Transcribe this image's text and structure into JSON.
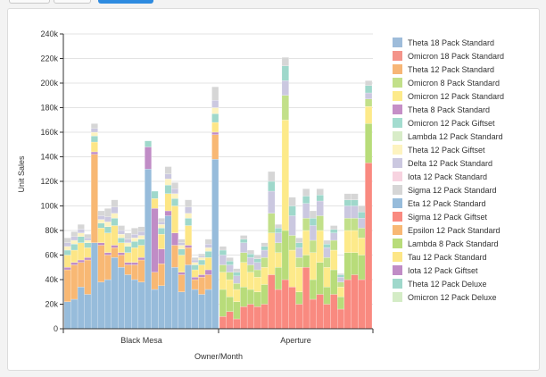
{
  "chart_data": {
    "type": "bar",
    "stacked": true,
    "title": "",
    "xlabel": "Owner/Month",
    "ylabel": "Unit Sales",
    "ylim": [
      0,
      240000
    ],
    "yticks": [
      0,
      20000,
      40000,
      60000,
      80000,
      100000,
      120000,
      140000,
      160000,
      180000,
      200000,
      220000,
      240000
    ],
    "ytick_labels": [
      "0",
      "20k",
      "40k",
      "60k",
      "80k",
      "100k",
      "120k",
      "140k",
      "160k",
      "180k",
      "200k",
      "220k",
      "240k"
    ],
    "grid": true,
    "legend_position": "right",
    "groups": [
      {
        "name": "Black Mesa",
        "totals": [
          74000,
          79000,
          85000,
          77000,
          167000,
          96000,
          98000,
          105000,
          84000,
          78000,
          82000,
          83000,
          153000,
          112000,
          90000,
          132000,
          119000,
          73000,
          105000,
          58000,
          61000,
          73000,
          197000
        ],
        "breakdown": [
          {
            "series": "Eta 12 Pack Standard",
            "values": [
              22000,
              24000,
              34000,
              28000,
              70000,
              38000,
              40000,
              58000,
              50000,
              44000,
              40000,
              38000,
              130000,
              32000,
              35000,
              92000,
              50000,
              30000,
              52000,
              32000,
              28000,
              32000,
              138000
            ]
          },
          {
            "series": "Epsilon 12 Pack Standard",
            "values": [
              26000,
              28000,
              20000,
              28000,
              72000,
              30000,
              20000,
              8000,
              10000,
              8000,
              12000,
              18000,
              0,
              14000,
              18000,
              0,
              18000,
              14000,
              14000,
              8000,
              14000,
              12000,
              20000
            ]
          },
          {
            "series": "Iota 12 Pack Giftset",
            "values": [
              2000,
              2000,
              2000,
              2000,
              2000,
              2000,
              2000,
              2000,
              2000,
              2000,
              2000,
              2000,
              18000,
              52000,
              12000,
              4000,
              10000,
              2000,
              2000,
              2000,
              2000,
              4000,
              2000
            ]
          },
          {
            "series": "Tau 12 Pack Standard",
            "values": [
              10000,
              10000,
              14000,
              8000,
              8000,
              12000,
              16000,
              16000,
              8000,
              8000,
              12000,
              10000,
              0,
              8000,
              12000,
              14000,
              22000,
              14000,
              16000,
              6000,
              8000,
              10000,
              8000
            ]
          },
          {
            "series": "Theta 12 Pack Deluxe",
            "values": [
              4000,
              5000,
              5000,
              4000,
              5000,
              4000,
              5000,
              6000,
              4000,
              5000,
              5000,
              5000,
              5000,
              6000,
              5000,
              7000,
              6000,
              5000,
              6000,
              4000,
              4000,
              5000,
              7000
            ]
          },
          {
            "series": "Theta 12 Pack Giftset",
            "values": [
              3000,
              3000,
              3000,
              2000,
              3000,
              3000,
              4000,
              4000,
              3000,
              3000,
              3000,
              3000,
              0,
              0,
              3000,
              5000,
              4000,
              3000,
              4000,
              2000,
              2000,
              3000,
              5000
            ]
          },
          {
            "series": "Delta 12 Pack Standard",
            "values": [
              3000,
              3000,
              3000,
              2000,
              3000,
              3000,
              4000,
              5000,
              3000,
              3000,
              3000,
              3000,
              0,
              0,
              2000,
              4000,
              4000,
              2000,
              5000,
              2000,
              1000,
              3000,
              6000
            ]
          },
          {
            "series": "Sigma 12 Pack Standard",
            "values": [
              4000,
              4000,
              4000,
              3000,
              4000,
              4000,
              7000,
              6000,
              4000,
              5000,
              5000,
              4000,
              0,
              0,
              3000,
              6000,
              5000,
              3000,
              6000,
              2000,
              2000,
              4000,
              11000
            ]
          }
        ]
      },
      {
        "name": "Aperture",
        "totals": [
          67000,
          58000,
          49000,
          76000,
          64000,
          60000,
          70000,
          128000,
          85000,
          221000,
          107000,
          74000,
          114000,
          96000,
          114000,
          72000,
          84000,
          45000,
          110000,
          110000,
          100000,
          202000
        ],
        "breakdown": [
          {
            "series": "Sigma 12 Pack Giftset",
            "values": [
              10000,
              14000,
              8000,
              18000,
              20000,
              18000,
              20000,
              44000,
              32000,
              40000,
              34000,
              20000,
              50000,
              24000,
              28000,
              20000,
              28000,
              16000,
              40000,
              44000,
              40000,
              135000
            ]
          },
          {
            "series": "Lambda 8 Pack Standard",
            "values": [
              22000,
              12000,
              14000,
              16000,
              12000,
              12000,
              16000,
              0,
              18000,
              40000,
              0,
              10000,
              10000,
              16000,
              26000,
              14000,
              20000,
              10000,
              22000,
              18000,
              20000,
              32000
            ]
          },
          {
            "series": "Omicron 12 Pack Standard",
            "values": [
              14000,
              14000,
              10000,
              20000,
              14000,
              12000,
              14000,
              34000,
              12000,
              90000,
              30000,
              20000,
              20000,
              22000,
              26000,
              16000,
              16000,
              8000,
              18000,
              18000,
              14000,
              14000
            ]
          },
          {
            "series": "Omicron 8 Pack Standard",
            "values": [
              6000,
              6000,
              5000,
              8000,
              6000,
              6000,
              8000,
              16000,
              8000,
              20000,
              12000,
              8000,
              10000,
              10000,
              12000,
              8000,
              8000,
              4000,
              10000,
              10000,
              8000,
              6000
            ]
          },
          {
            "series": "Delta 12 Pack Standard",
            "values": [
              8000,
              6000,
              6000,
              8000,
              6000,
              6000,
              6000,
              18000,
              8000,
              12000,
              16000,
              8000,
              12000,
              12000,
              12000,
              8000,
              6000,
              4000,
              10000,
              10000,
              8000,
              5000
            ]
          },
          {
            "series": "Theta 12 Pack Deluxe",
            "values": [
              4000,
              3000,
              3000,
              3000,
              3000,
              3000,
              3000,
              8000,
              4000,
              12000,
              8000,
              4000,
              6000,
              6000,
              5000,
              3000,
              3000,
              2000,
              5000,
              5000,
              5000,
              6000
            ]
          },
          {
            "series": "Sigma 12 Pack Standard",
            "values": [
              3000,
              3000,
              3000,
              3000,
              3000,
              3000,
              3000,
              8000,
              3000,
              7000,
              7000,
              4000,
              6000,
              6000,
              5000,
              3000,
              3000,
              1000,
              5000,
              5000,
              5000,
              4000
            ]
          }
        ]
      }
    ],
    "series": [
      {
        "name": "Theta 18 Pack Standard",
        "color": "#9ebcda"
      },
      {
        "name": "Omicron 18 Pack Standard",
        "color": "#f4948a"
      },
      {
        "name": "Theta 12 Pack Standard",
        "color": "#f7b676"
      },
      {
        "name": "Omicron 8 Pack Standard",
        "color": "#c2e08a"
      },
      {
        "name": "Omicron 12 Pack Standard",
        "color": "#fdea8a"
      },
      {
        "name": "Theta 8 Pack Standard",
        "color": "#c58fc7"
      },
      {
        "name": "Omicron 12 Pack Giftset",
        "color": "#a3dccf"
      },
      {
        "name": "Lambda 12 Pack Standard",
        "color": "#d8ecc8"
      },
      {
        "name": "Theta 12 Pack Giftset",
        "color": "#fdf3c0"
      },
      {
        "name": "Delta 12 Pack Standard",
        "color": "#cbc8e0"
      },
      {
        "name": "Iota 12 Pack Standard",
        "color": "#f7d3e0"
      },
      {
        "name": "Sigma 12 Pack Standard",
        "color": "#d6d6d6"
      },
      {
        "name": "Eta 12 Pack Standard",
        "color": "#97bcdb"
      },
      {
        "name": "Sigma 12 Pack Giftset",
        "color": "#f98a80"
      },
      {
        "name": "Epsilon 12 Pack Standard",
        "color": "#f8b874"
      },
      {
        "name": "Lambda 8 Pack Standard",
        "color": "#b8dc7a"
      },
      {
        "name": "Tau 12 Pack Standard",
        "color": "#fde686"
      },
      {
        "name": "Iota 12 Pack Giftset",
        "color": "#c08cc6"
      },
      {
        "name": "Theta 12 Pack Deluxe",
        "color": "#9fd8cb"
      },
      {
        "name": "Omicron 12 Pack Deluxe",
        "color": "#d4ecc6"
      }
    ]
  }
}
